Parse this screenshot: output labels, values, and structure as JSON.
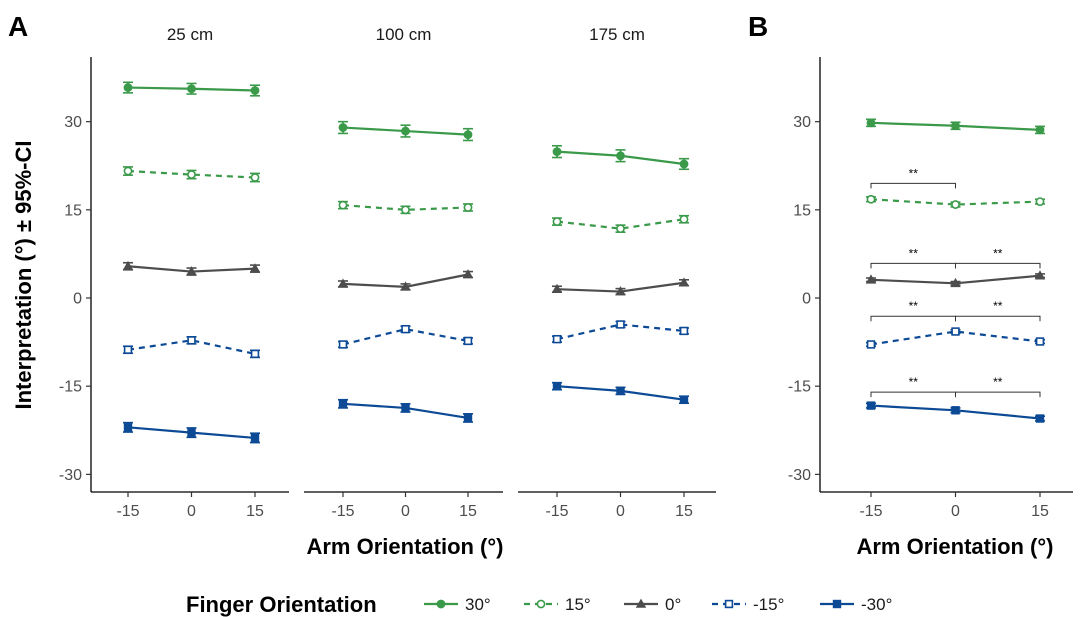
{
  "colors": {
    "green": "#3a9a4a",
    "gray": "#4d4d4d",
    "blue": "#0d4a96",
    "axis": "#000000",
    "tick_text": "#4d4d4d"
  },
  "legend": {
    "title": "Finger Orientation",
    "placement": "bottom"
  },
  "chart_data": [
    {
      "panel": "A",
      "type": "line",
      "facets": [
        "25 cm",
        "100 cm",
        "175 cm"
      ],
      "x": [
        -15,
        0,
        15
      ],
      "xticks": [
        "-15",
        "0",
        "15"
      ],
      "xlabel": "Arm Orientation (°)",
      "ylabel": "Interpretation (°) ± 95%-CI",
      "ylim": [
        -33,
        41
      ],
      "yticks": [
        -30,
        -15,
        0,
        15,
        30
      ],
      "ytick_labels": [
        "-30",
        "-15",
        "0",
        "15",
        "30"
      ],
      "grid": false,
      "series": [
        {
          "name": "30°",
          "color": "#3a9a4a",
          "dash": "solid",
          "marker": "circle-filled",
          "values": [
            [
              35.8,
              35.6,
              35.3
            ],
            [
              29.0,
              28.4,
              27.8
            ],
            [
              24.9,
              24.2,
              22.8
            ]
          ],
          "ci": [
            [
              0.9,
              0.9,
              0.9
            ],
            [
              1.0,
              1.0,
              1.0
            ],
            [
              1.0,
              1.0,
              0.9
            ]
          ]
        },
        {
          "name": "15°",
          "color": "#3a9a4a",
          "dash": "dashed",
          "marker": "circle-open",
          "values": [
            [
              21.6,
              21.0,
              20.5
            ],
            [
              15.8,
              15.0,
              15.4
            ],
            [
              13.0,
              11.8,
              13.4
            ]
          ],
          "ci": [
            [
              0.7,
              0.7,
              0.7
            ],
            [
              0.6,
              0.6,
              0.6
            ],
            [
              0.6,
              0.6,
              0.6
            ]
          ]
        },
        {
          "name": "0°",
          "color": "#4d4d4d",
          "dash": "solid",
          "marker": "triangle-filled",
          "values": [
            [
              5.4,
              4.5,
              5.0
            ],
            [
              2.4,
              1.9,
              4.0
            ],
            [
              1.5,
              1.1,
              2.6
            ]
          ],
          "ci": [
            [
              0.6,
              0.6,
              0.6
            ],
            [
              0.5,
              0.5,
              0.5
            ],
            [
              0.5,
              0.5,
              0.5
            ]
          ]
        },
        {
          "name": "-15°",
          "color": "#0d4a96",
          "dash": "dashed",
          "marker": "square-open",
          "values": [
            [
              -8.8,
              -7.2,
              -9.5
            ],
            [
              -7.9,
              -5.3,
              -7.3
            ],
            [
              -7.0,
              -4.5,
              -5.6
            ]
          ],
          "ci": [
            [
              0.6,
              0.6,
              0.6
            ],
            [
              0.5,
              0.5,
              0.5
            ],
            [
              0.5,
              0.5,
              0.5
            ]
          ]
        },
        {
          "name": "-30°",
          "color": "#0d4a96",
          "dash": "solid",
          "marker": "square-filled",
          "values": [
            [
              -22.0,
              -22.9,
              -23.8
            ],
            [
              -18.0,
              -18.7,
              -20.4
            ],
            [
              -15.0,
              -15.8,
              -17.3
            ]
          ],
          "ci": [
            [
              0.8,
              0.8,
              0.8
            ],
            [
              0.7,
              0.7,
              0.7
            ],
            [
              0.6,
              0.6,
              0.6
            ]
          ]
        }
      ]
    },
    {
      "panel": "B",
      "type": "line",
      "x": [
        -15,
        0,
        15
      ],
      "xticks": [
        "-15",
        "0",
        "15"
      ],
      "xlabel": "Arm Orientation (°)",
      "ylim": [
        -33,
        41
      ],
      "yticks": [
        -30,
        -15,
        0,
        15,
        30
      ],
      "ytick_labels": [
        "-30",
        "-15",
        "0",
        "15",
        "30"
      ],
      "grid": false,
      "series": [
        {
          "name": "30°",
          "color": "#3a9a4a",
          "dash": "solid",
          "marker": "circle-filled",
          "values": [
            29.8,
            29.3,
            28.6
          ],
          "ci": [
            0.6,
            0.6,
            0.6
          ]
        },
        {
          "name": "15°",
          "color": "#3a9a4a",
          "dash": "dashed",
          "marker": "circle-open",
          "values": [
            16.8,
            15.9,
            16.4
          ],
          "ci": [
            0.4,
            0.4,
            0.4
          ]
        },
        {
          "name": "0°",
          "color": "#4d4d4d",
          "dash": "solid",
          "marker": "triangle-filled",
          "values": [
            3.1,
            2.5,
            3.8
          ],
          "ci": [
            0.3,
            0.3,
            0.3
          ]
        },
        {
          "name": "-15°",
          "color": "#0d4a96",
          "dash": "dashed",
          "marker": "square-open",
          "values": [
            -7.9,
            -5.7,
            -7.4
          ],
          "ci": [
            0.3,
            0.3,
            0.3
          ]
        },
        {
          "name": "-30°",
          "color": "#0d4a96",
          "dash": "solid",
          "marker": "square-filled",
          "values": [
            -18.3,
            -19.1,
            -20.5
          ],
          "ci": [
            0.4,
            0.4,
            0.4
          ]
        }
      ],
      "significance": [
        {
          "x1": -15,
          "x2": 0,
          "y": 19.5,
          "label": "**"
        },
        {
          "x1": -15,
          "x2": 0,
          "y": 5.9,
          "label": "**"
        },
        {
          "x1": 0,
          "x2": 15,
          "y": 5.9,
          "label": "**"
        },
        {
          "x1": -15,
          "x2": 0,
          "y": -3.1,
          "label": "**"
        },
        {
          "x1": 0,
          "x2": 15,
          "y": -3.1,
          "label": "**"
        },
        {
          "x1": -15,
          "x2": 0,
          "y": -16.0,
          "label": "**"
        },
        {
          "x1": 0,
          "x2": 15,
          "y": -16.0,
          "label": "**"
        }
      ]
    }
  ]
}
